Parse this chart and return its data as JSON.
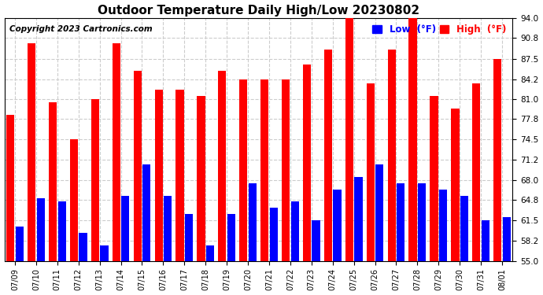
{
  "title": "Outdoor Temperature Daily High/Low 20230802",
  "copyright": "Copyright 2023 Cartronics.com",
  "dates": [
    "07/09",
    "07/10",
    "07/11",
    "07/12",
    "07/13",
    "07/14",
    "07/15",
    "07/16",
    "07/17",
    "07/18",
    "07/19",
    "07/20",
    "07/21",
    "07/22",
    "07/23",
    "07/24",
    "07/25",
    "07/26",
    "07/27",
    "07/28",
    "07/29",
    "07/30",
    "07/31",
    "08/01"
  ],
  "highs": [
    78.5,
    90.0,
    80.5,
    74.5,
    81.0,
    90.0,
    85.5,
    82.5,
    82.5,
    81.5,
    85.5,
    84.2,
    84.2,
    84.2,
    86.5,
    89.0,
    94.0,
    83.5,
    89.0,
    94.0,
    81.5,
    79.5,
    83.5,
    87.5
  ],
  "lows": [
    60.5,
    65.0,
    64.5,
    59.5,
    57.5,
    65.5,
    70.5,
    65.5,
    62.5,
    57.5,
    62.5,
    67.5,
    63.5,
    64.5,
    61.5,
    66.5,
    68.5,
    70.5,
    67.5,
    67.5,
    66.5,
    65.5,
    61.5,
    62.0
  ],
  "high_color": "#ff0000",
  "low_color": "#0000ff",
  "bg_color": "#ffffff",
  "grid_color": "#cccccc",
  "ylim_min": 55.0,
  "ylim_max": 94.0,
  "yticks": [
    55.0,
    58.2,
    61.5,
    64.8,
    68.0,
    71.2,
    74.5,
    77.8,
    81.0,
    84.2,
    87.5,
    90.8,
    94.0
  ],
  "title_fontsize": 11,
  "copyright_fontsize": 7.5,
  "legend_low_label": "Low  (°F)",
  "legend_high_label": "High  (°F)"
}
